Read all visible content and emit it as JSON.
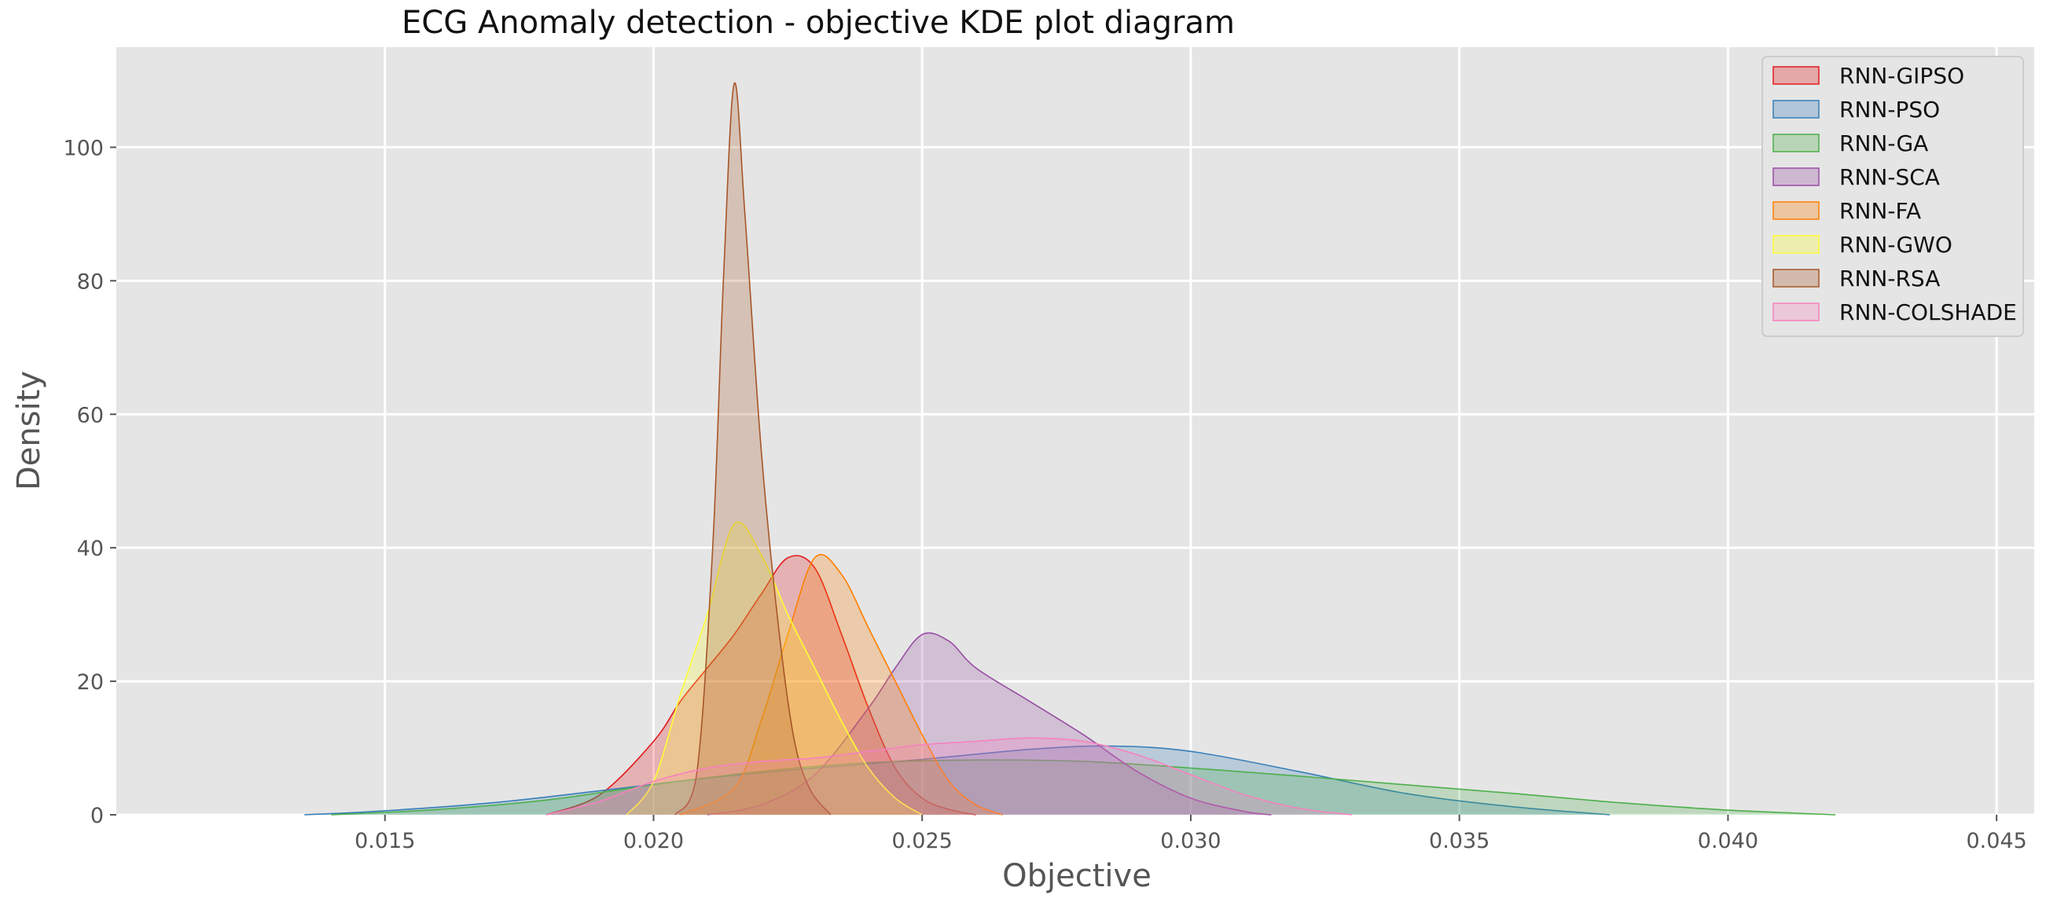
{
  "chart_data": {
    "type": "area",
    "title": "ECG Anomaly detection -  objective KDE plot diagram",
    "xlabel": "Objective",
    "ylabel": "Density",
    "xlim": [
      0.01,
      0.0457
    ],
    "ylim": [
      0,
      115
    ],
    "x_ticks": [
      0.015,
      0.02,
      0.025,
      0.03,
      0.035,
      0.04,
      0.045
    ],
    "x_tick_labels": [
      "0.015",
      "0.020",
      "0.025",
      "0.030",
      "0.035",
      "0.040",
      "0.045"
    ],
    "y_ticks": [
      0,
      20,
      40,
      60,
      80,
      100
    ],
    "y_tick_labels": [
      "0",
      "20",
      "40",
      "60",
      "80",
      "100"
    ],
    "grid": true,
    "legend_position": "top-right",
    "series": [
      {
        "name": "RNN-GIPSO",
        "color": "#e41a1c",
        "points": [
          [
            0.018,
            0
          ],
          [
            0.019,
            3
          ],
          [
            0.02,
            11
          ],
          [
            0.0205,
            17
          ],
          [
            0.021,
            22
          ],
          [
            0.0215,
            27
          ],
          [
            0.022,
            33
          ],
          [
            0.0225,
            38.5
          ],
          [
            0.023,
            37
          ],
          [
            0.0235,
            27
          ],
          [
            0.024,
            16
          ],
          [
            0.0245,
            7
          ],
          [
            0.025,
            2.5
          ],
          [
            0.0255,
            0.8
          ],
          [
            0.026,
            0
          ]
        ]
      },
      {
        "name": "RNN-PSO",
        "color": "#377eb8",
        "points": [
          [
            0.0135,
            0
          ],
          [
            0.015,
            0.6
          ],
          [
            0.017,
            1.8
          ],
          [
            0.019,
            3.6
          ],
          [
            0.021,
            5.5
          ],
          [
            0.023,
            7
          ],
          [
            0.025,
            8.3
          ],
          [
            0.027,
            9.8
          ],
          [
            0.0285,
            10.3
          ],
          [
            0.03,
            9.5
          ],
          [
            0.032,
            6.5
          ],
          [
            0.034,
            3.2
          ],
          [
            0.036,
            1.2
          ],
          [
            0.0378,
            0
          ]
        ]
      },
      {
        "name": "RNN-GA",
        "color": "#4daf4a",
        "points": [
          [
            0.014,
            0
          ],
          [
            0.016,
            0.8
          ],
          [
            0.018,
            2.2
          ],
          [
            0.02,
            4.5
          ],
          [
            0.022,
            6.5
          ],
          [
            0.024,
            7.8
          ],
          [
            0.026,
            8.2
          ],
          [
            0.028,
            8
          ],
          [
            0.03,
            7
          ],
          [
            0.032,
            5.8
          ],
          [
            0.034,
            4.5
          ],
          [
            0.036,
            3.2
          ],
          [
            0.038,
            1.8
          ],
          [
            0.04,
            0.7
          ],
          [
            0.042,
            0
          ]
        ]
      },
      {
        "name": "RNN-SCA",
        "color": "#984ea3",
        "points": [
          [
            0.021,
            0
          ],
          [
            0.022,
            1.5
          ],
          [
            0.023,
            6
          ],
          [
            0.024,
            16
          ],
          [
            0.0245,
            22
          ],
          [
            0.025,
            27
          ],
          [
            0.0255,
            26
          ],
          [
            0.026,
            22
          ],
          [
            0.027,
            17
          ],
          [
            0.028,
            12
          ],
          [
            0.029,
            6.5
          ],
          [
            0.03,
            2.5
          ],
          [
            0.031,
            0.5
          ],
          [
            0.0315,
            0
          ]
        ]
      },
      {
        "name": "RNN-FA",
        "color": "#ff7f00",
        "points": [
          [
            0.0205,
            0
          ],
          [
            0.0215,
            4
          ],
          [
            0.022,
            14
          ],
          [
            0.0225,
            27
          ],
          [
            0.023,
            38.5
          ],
          [
            0.0235,
            36
          ],
          [
            0.024,
            28
          ],
          [
            0.0245,
            20
          ],
          [
            0.025,
            12
          ],
          [
            0.0255,
            5
          ],
          [
            0.026,
            1.5
          ],
          [
            0.0265,
            0
          ]
        ]
      },
      {
        "name": "RNN-GWO",
        "color": "#ffff33",
        "points": [
          [
            0.0195,
            0
          ],
          [
            0.02,
            5
          ],
          [
            0.0205,
            18
          ],
          [
            0.021,
            30
          ],
          [
            0.0215,
            43.5
          ],
          [
            0.022,
            39
          ],
          [
            0.0225,
            30
          ],
          [
            0.023,
            22
          ],
          [
            0.0235,
            14
          ],
          [
            0.024,
            7
          ],
          [
            0.0245,
            2.5
          ],
          [
            0.025,
            0
          ]
        ]
      },
      {
        "name": "RNN-RSA",
        "color": "#a65628",
        "points": [
          [
            0.0204,
            0
          ],
          [
            0.0208,
            6
          ],
          [
            0.0211,
            40
          ],
          [
            0.0213,
            80
          ],
          [
            0.0215,
            109.5
          ],
          [
            0.0217,
            90
          ],
          [
            0.022,
            55
          ],
          [
            0.0223,
            30
          ],
          [
            0.0226,
            12
          ],
          [
            0.0229,
            4
          ],
          [
            0.0233,
            0
          ]
        ]
      },
      {
        "name": "RNN-COLSHADE",
        "color": "#f781bf",
        "points": [
          [
            0.018,
            0
          ],
          [
            0.019,
            2
          ],
          [
            0.02,
            5
          ],
          [
            0.021,
            7
          ],
          [
            0.022,
            8
          ],
          [
            0.023,
            8.5
          ],
          [
            0.024,
            9.5
          ],
          [
            0.025,
            10.5
          ],
          [
            0.026,
            11
          ],
          [
            0.027,
            11.5
          ],
          [
            0.028,
            11
          ],
          [
            0.029,
            9
          ],
          [
            0.03,
            6
          ],
          [
            0.031,
            3
          ],
          [
            0.032,
            1
          ],
          [
            0.033,
            0
          ]
        ]
      }
    ]
  }
}
